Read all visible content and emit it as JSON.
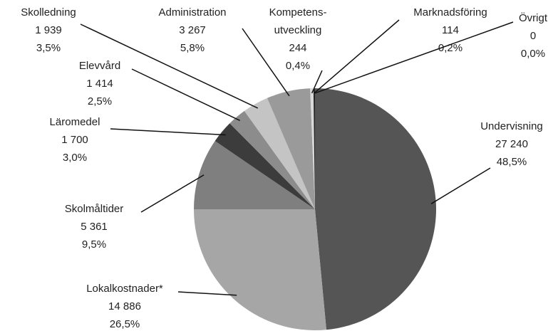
{
  "chart_data": {
    "type": "pie",
    "categories": [
      "Undervisning",
      "Lokalkostnader*",
      "Skolmåltider",
      "Läromedel",
      "Elevvård",
      "Skolledning",
      "Administration",
      "Kompetens-\nutveckling",
      "Marknadsföring",
      "Övrigt"
    ],
    "values": [
      27240,
      14886,
      5361,
      1700,
      1414,
      1939,
      3267,
      244,
      114,
      0
    ],
    "value_labels": [
      "27 240",
      "14 886",
      "5 361",
      "1 700",
      "1 414",
      "1 939",
      "3 267",
      "244",
      "114",
      "0"
    ],
    "percent_labels": [
      "48,5%",
      "26,5%",
      "9,5%",
      "3,0%",
      "2,5%",
      "3,5%",
      "5,8%",
      "0,4%",
      "0,2%",
      "0,0%"
    ],
    "colors": [
      "#555555",
      "#a6a6a6",
      "#7f7f7f",
      "#3c3c3c",
      "#8c8c8c",
      "#c4c4c4",
      "#9a9a9a",
      "#d9d9d9",
      "#262626",
      "#000000"
    ]
  }
}
